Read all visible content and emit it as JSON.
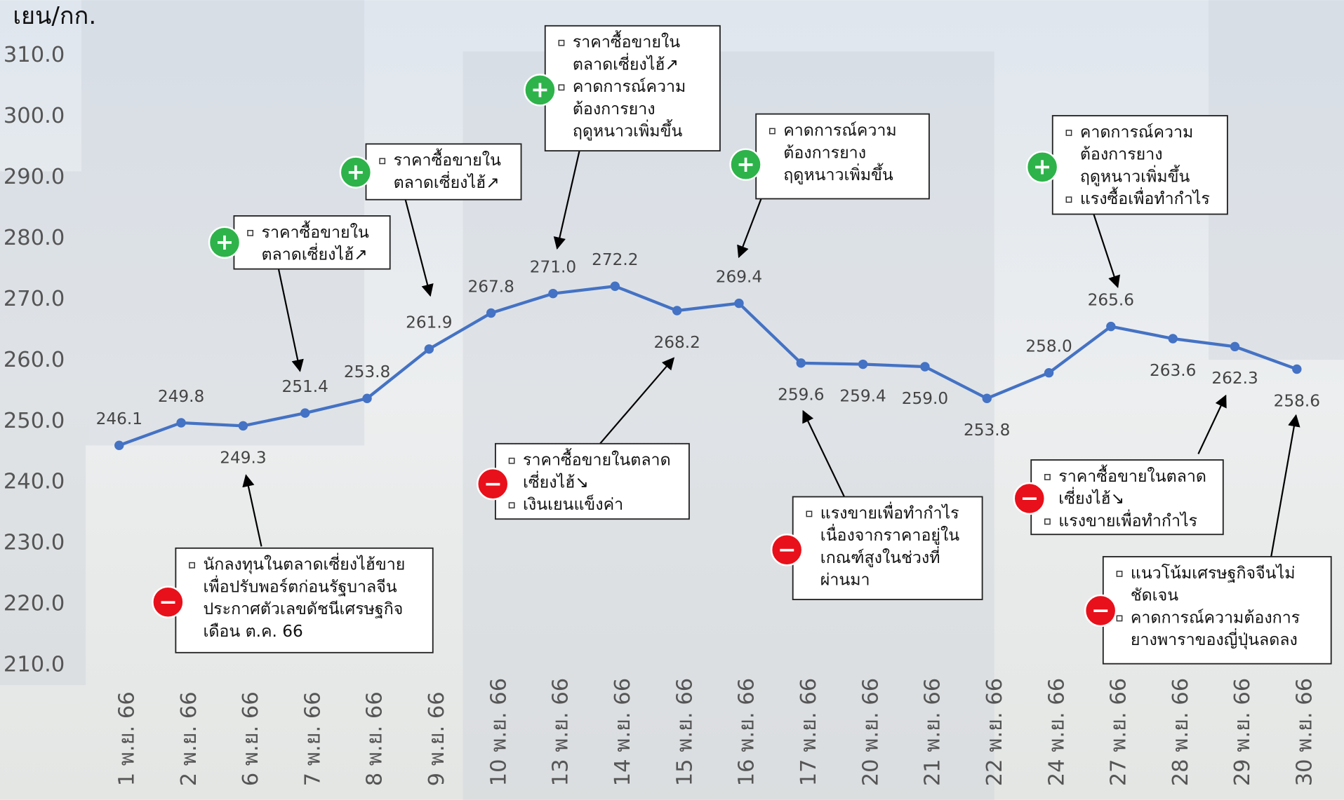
{
  "chart_data": {
    "type": "line",
    "y_label": "เยน/กก.",
    "categories": [
      "1 พ.ย. 66",
      "2 พ.ย. 66",
      "6 พ.ย. 66",
      "7 พ.ย. 66",
      "8 พ.ย. 66",
      "9 พ.ย. 66",
      "10 พ.ย. 66",
      "13 พ.ย. 66",
      "14 พ.ย. 66",
      "15 พ.ย. 66",
      "16 พ.ย. 66",
      "17 พ.ย. 66",
      "20 พ.ย. 66",
      "21 พ.ย. 66",
      "22 พ.ย. 66",
      "24 พ.ย. 66",
      "27 พ.ย. 66",
      "28 พ.ย. 66",
      "29 พ.ย. 66",
      "30 พ.ย. 66"
    ],
    "values": [
      246.1,
      249.8,
      249.3,
      251.4,
      253.8,
      261.9,
      267.8,
      271.0,
      272.2,
      268.2,
      269.4,
      259.6,
      259.4,
      259.0,
      253.8,
      258.0,
      265.6,
      263.6,
      262.3,
      258.6
    ],
    "value_labels": [
      "246.1",
      "249.8",
      "249.3",
      "251.4",
      "253.8",
      "261.9",
      "267.8",
      "271.0",
      "272.2",
      "268.2",
      "269.4",
      "259.6",
      "259.4",
      "259.0",
      "253.8",
      "258.0",
      "265.6",
      "263.6",
      "262.3",
      "258.6"
    ],
    "color": "#4472c4",
    "ylim": [
      205,
      315
    ],
    "yticks": [
      {
        "value": 210,
        "label": "210.0"
      },
      {
        "value": 220,
        "label": "220.0"
      },
      {
        "value": 230,
        "label": "230.0"
      },
      {
        "value": 240,
        "label": "240.0"
      },
      {
        "value": 250,
        "label": "250.0"
      },
      {
        "value": 260,
        "label": "260.0"
      },
      {
        "value": 270,
        "label": "270.0"
      },
      {
        "value": 280,
        "label": "280.0"
      },
      {
        "value": 290,
        "label": "290.0"
      },
      {
        "value": 300,
        "label": "300.0"
      },
      {
        "value": 310,
        "label": "310.0"
      }
    ],
    "grid": false,
    "annotations": [
      {
        "sign": "+",
        "bullets": [
          [
            "ราคาซื้อขายใน",
            "ตลาดเซี่ยงไฮ้↗"
          ]
        ]
      },
      {
        "sign": "+",
        "bullets": [
          [
            "ราคาซื้อขายใน",
            "ตลาดเซี่ยงไฮ้↗"
          ]
        ]
      },
      {
        "sign": "+",
        "bullets": [
          [
            "ราคาซื้อขายใน",
            "ตลาดเซี่ยงไฮ้↗"
          ],
          [
            "คาดการณ์ความ",
            "ต้องการยาง",
            "ฤดูหนาวเพิ่มขึ้น"
          ]
        ]
      },
      {
        "sign": "+",
        "bullets": [
          [
            "คาดการณ์ความ",
            "ต้องการยาง",
            "ฤดูหนาวเพิ่มขึ้น"
          ]
        ]
      },
      {
        "sign": "+",
        "bullets": [
          [
            "คาดการณ์ความ",
            "ต้องการยาง",
            "ฤดูหนาวเพิ่มขึ้น"
          ],
          [
            "แรงซื้อเพื่อทำกำไร"
          ]
        ]
      },
      {
        "sign": "−",
        "bullets": [
          [
            "นักลงทุนในตลาดเซี่ยงไฮ้ขาย",
            "เพื่อปรับพอร์ตก่อนรัฐบาลจีน",
            "ประกาศตัวเลขดัชนีเศรษฐกิจ",
            "เดือน ต.ค. 66"
          ]
        ]
      },
      {
        "sign": "−",
        "bullets": [
          [
            "ราคาซื้อขายในตลาด",
            "เซี่ยงไฮ้↘"
          ],
          [
            "เงินเยนแข็งค่า"
          ]
        ]
      },
      {
        "sign": "−",
        "bullets": [
          [
            "แรงขายเพื่อทำกำไร",
            "เนื่องจากราคาอยู่ใน",
            "เกณฑ์สูงในช่วงที่",
            "ผ่านมา"
          ]
        ]
      },
      {
        "sign": "−",
        "bullets": [
          [
            "ราคาซื้อขายในตลาด",
            "เซี่ยงไฮ้↘"
          ],
          [
            "แรงขายเพื่อทำกำไร"
          ]
        ]
      },
      {
        "sign": "−",
        "bullets": [
          [
            "แนวโน้มเศรษฐกิจจีนไม่",
            "ชัดเจน"
          ],
          [
            "คาดการณ์ความต้องการ",
            "ยางพาราของญี่ปุ่นลดลง"
          ]
        ]
      }
    ]
  }
}
